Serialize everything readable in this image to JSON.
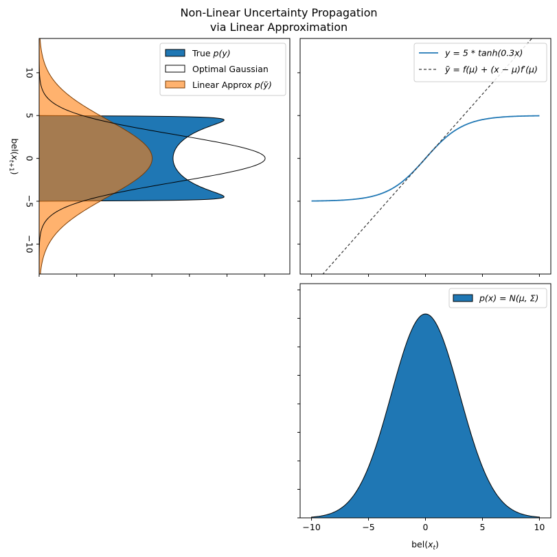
{
  "title": {
    "line1": "Non-Linear Uncertainty Propagation",
    "line2": "via Linear Approximation"
  },
  "colors": {
    "blue": "#1f77b4",
    "orange": "#ff7f0e",
    "overlap": "#a57c52",
    "dashed": "#333333"
  },
  "chart_data": [
    {
      "id": "output-density",
      "type": "area",
      "orientation": "horizontal",
      "ylabel": "bel(x_{t+1})",
      "ylim": [
        -13.5,
        14
      ],
      "yticks": [
        -10,
        -5,
        0,
        5,
        10
      ],
      "yticklabels": [
        "−10",
        "−5",
        "0",
        "5",
        "10"
      ],
      "xlim": [
        0,
        1
      ],
      "grid": false,
      "legend_position": "top-right",
      "series": [
        {
          "name": "True p(y)",
          "label": "True ",
          "math": "p(y)",
          "kind": "filled",
          "color": "#1f77b4",
          "formula": "density of y = 5*tanh(0.3x), x ~ N(0, 3^2)",
          "support": [
            -5,
            5
          ]
        },
        {
          "name": "Optimal Gaussian",
          "label": "Optimal Gaussian",
          "kind": "outline",
          "color": "#000000",
          "mean": 0,
          "std": 2.75
        },
        {
          "name": "Linear Approx p(ỹ)",
          "label": "Linear Approx ",
          "math": "p(ỹ)",
          "kind": "filled",
          "color": "#ff7f0e",
          "mean": 0,
          "std": 4.5
        }
      ]
    },
    {
      "id": "transfer-function",
      "type": "line",
      "xlim": [
        -11,
        11
      ],
      "ylim": [
        -13.5,
        14
      ],
      "legend_position": "top-right",
      "series": [
        {
          "name": "y = 5*tanh(0.3x)",
          "label": "y = 5 * tanh(0.3x)",
          "kind": "solid",
          "color": "#1f77b4",
          "function": "5*tanh(0.3*x)",
          "x_range": [
            -10,
            10
          ]
        },
        {
          "name": "ỹ = f(μ) + (x − μ)f′(μ)",
          "label": "ỹ = f(μ) + (x − μ)f′(μ)",
          "kind": "dashed",
          "color": "#333333",
          "function": "1.5*x"
        }
      ]
    },
    {
      "id": "input-density",
      "type": "area",
      "xlabel": "bel(x_t)",
      "xlim": [
        -11,
        11
      ],
      "xticks": [
        -10,
        -5,
        0,
        5,
        10
      ],
      "xticklabels": [
        "−10",
        "−5",
        "0",
        "5",
        "10"
      ],
      "ylim": [
        0,
        1.06
      ],
      "y_minor_ticks": 8,
      "grid": false,
      "legend_position": "top-right",
      "series": [
        {
          "name": "p(x) = N(μ, Σ)",
          "label": "p(x) = N(μ, Σ)",
          "kind": "filled",
          "color": "#1f77b4",
          "mean": 0,
          "std": 3,
          "x_range": [
            -10,
            10
          ]
        }
      ]
    }
  ]
}
